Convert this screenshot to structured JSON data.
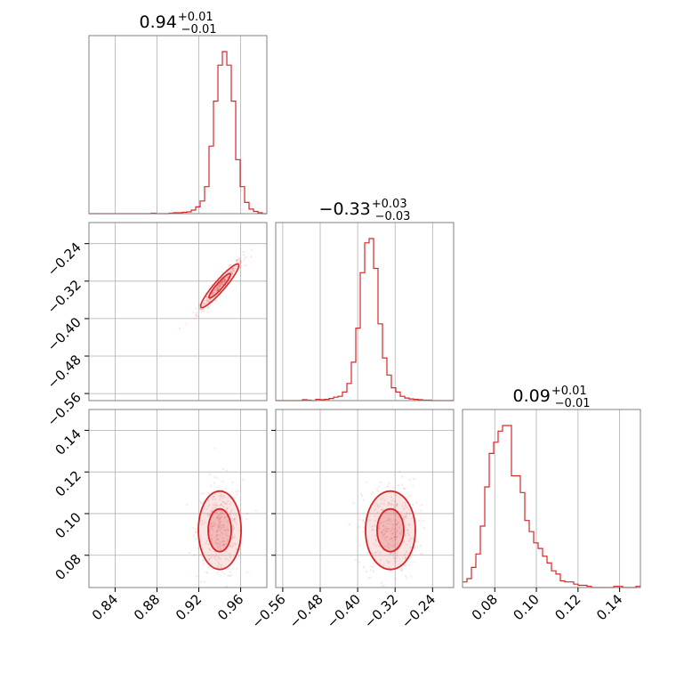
{
  "chart_data": {
    "type": "corner",
    "color": "#d62728",
    "grid": true,
    "parameters": [
      {
        "median": "0.94",
        "plus": "+0.01",
        "minus": "−0.01",
        "range": [
          0.815,
          0.985
        ]
      },
      {
        "median": "−0.33",
        "plus": "+0.03",
        "minus": "−0.03",
        "range": [
          -0.575,
          -0.195
        ]
      },
      {
        "median": "0.09",
        "plus": "+0.01",
        "minus": "−0.01",
        "range": [
          0.0645,
          0.15
        ]
      }
    ],
    "ticks": {
      "p0": [
        {
          "v": 0.84,
          "t": "0.84"
        },
        {
          "v": 0.88,
          "t": "0.88"
        },
        {
          "v": 0.92,
          "t": "0.92"
        },
        {
          "v": 0.96,
          "t": "0.96"
        }
      ],
      "p1": [
        {
          "v": -0.56,
          "t": "−0.56"
        },
        {
          "v": -0.48,
          "t": "−0.48"
        },
        {
          "v": -0.4,
          "t": "−0.40"
        },
        {
          "v": -0.32,
          "t": "−0.32"
        },
        {
          "v": -0.24,
          "t": "−0.24"
        }
      ],
      "p1_left": [
        {
          "v": -0.24,
          "t": "−0.24"
        },
        {
          "v": -0.32,
          "t": "−0.32"
        },
        {
          "v": -0.4,
          "t": "−0.40"
        },
        {
          "v": -0.48,
          "t": "−0.48"
        },
        {
          "v": -0.56,
          "t": "−0.56"
        }
      ],
      "p2": [
        {
          "v": 0.08,
          "t": "0.08"
        },
        {
          "v": 0.1,
          "t": "0.10"
        },
        {
          "v": 0.12,
          "t": "0.12"
        },
        {
          "v": 0.14,
          "t": "0.14"
        }
      ],
      "p2_left": [
        {
          "v": 0.14,
          "t": "0.14"
        },
        {
          "v": 0.12,
          "t": "0.12"
        },
        {
          "v": 0.1,
          "t": "0.10"
        },
        {
          "v": 0.08,
          "t": "0.08"
        }
      ]
    },
    "hist_p0": {
      "start": 0.815,
      "width": 0.00425,
      "counts": [
        0,
        0,
        0,
        0,
        0,
        0,
        0,
        0,
        0,
        0,
        0,
        0,
        0,
        0,
        1,
        0,
        0,
        0,
        1,
        2,
        2,
        3,
        4,
        8,
        15,
        28,
        60,
        150,
        250,
        330,
        360,
        330,
        250,
        120,
        60,
        25,
        10,
        5,
        2,
        0
      ]
    },
    "hist_p1": {
      "start": -0.575,
      "width": 0.0095,
      "counts": [
        0,
        0,
        0,
        0,
        0,
        0,
        2,
        1,
        0,
        3,
        2,
        3,
        5,
        8,
        10,
        20,
        40,
        90,
        170,
        300,
        370,
        380,
        310,
        180,
        100,
        60,
        30,
        20,
        10,
        6,
        4,
        3,
        2,
        1,
        1,
        0,
        0,
        0,
        0,
        0
      ]
    },
    "hist_p2": {
      "start": 0.0645,
      "width": 0.0021375,
      "counts": [
        5,
        8,
        18,
        30,
        55,
        90,
        120,
        130,
        140,
        145,
        145,
        100,
        100,
        85,
        60,
        50,
        40,
        35,
        28,
        22,
        15,
        12,
        6,
        5,
        5,
        3,
        2,
        2,
        1,
        0,
        0,
        0,
        0,
        0,
        1,
        1,
        0,
        0,
        0,
        1
      ]
    }
  }
}
